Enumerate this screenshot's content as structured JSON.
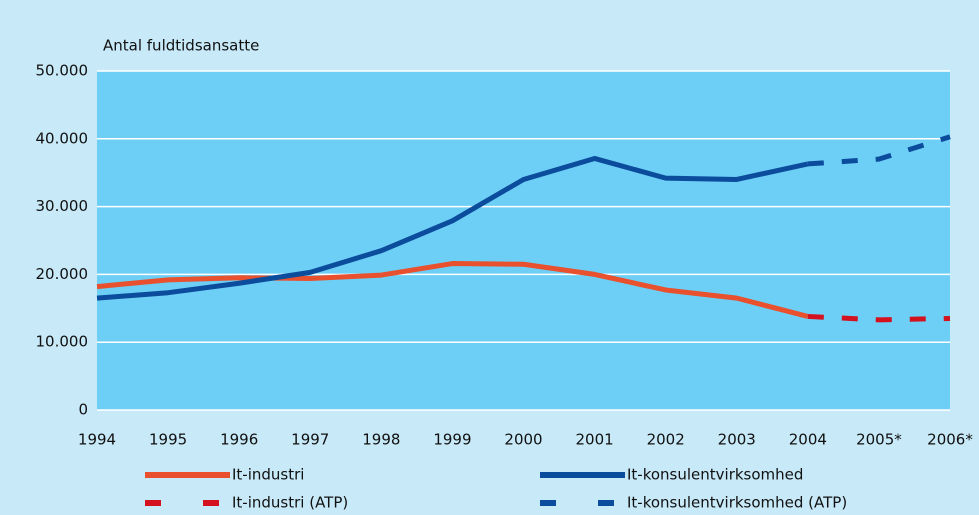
{
  "chart_data": {
    "type": "line",
    "y_label": "Antal fuldtidsansatte",
    "categories": [
      "1994",
      "1995",
      "1996",
      "1997",
      "1998",
      "1999",
      "2000",
      "2001",
      "2002",
      "2003",
      "2004",
      "2005*",
      "2006*"
    ],
    "series": [
      {
        "name": "It-industri",
        "color": "#e8502e",
        "dashed": false,
        "values": [
          18200,
          19200,
          19500,
          19400,
          19900,
          21600,
          21500,
          20000,
          17700,
          16500,
          13800,
          null,
          null
        ]
      },
      {
        "name": "It-konsulentvirksomhed",
        "color": "#0b4c9c",
        "dashed": false,
        "values": [
          16500,
          17300,
          18700,
          20300,
          23500,
          27900,
          34000,
          37100,
          34200,
          34000,
          36300,
          null,
          null
        ]
      },
      {
        "name": "It-industri (ATP)",
        "color": "#d4111e",
        "dashed": true,
        "values": [
          null,
          null,
          null,
          null,
          null,
          null,
          null,
          null,
          null,
          null,
          13800,
          13300,
          13500
        ]
      },
      {
        "name": "It-konsulentvirksomhed (ATP)",
        "color": "#0b4c9c",
        "dashed": true,
        "values": [
          null,
          null,
          null,
          null,
          null,
          null,
          null,
          null,
          null,
          null,
          36300,
          37000,
          40300
        ]
      }
    ],
    "ylim": [
      0,
      50000
    ],
    "yticks": [
      0,
      {
        "value": 10000,
        "label": "10.000"
      },
      {
        "value": 20000,
        "label": "20.000"
      },
      {
        "value": 30000,
        "label": "30.000"
      },
      {
        "value": 40000,
        "label": "40.000"
      },
      {
        "value": 50000,
        "label": "50.000"
      }
    ],
    "grid": true
  }
}
